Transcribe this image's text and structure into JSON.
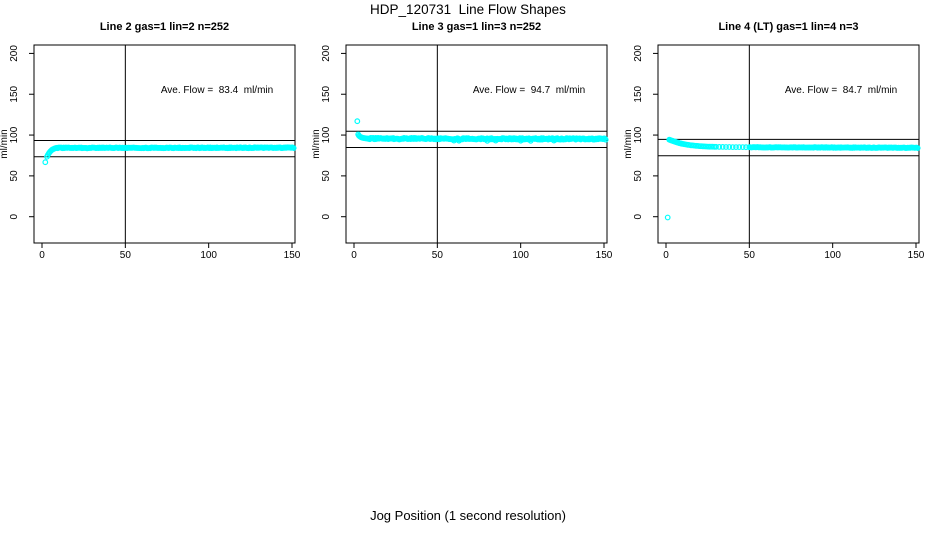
{
  "chart_data": {
    "type": "scatter",
    "title": "HDP_120731  Line Flow Shapes",
    "xlabel": "Jog Position (1 second resolution)",
    "ylabel": "ml/min",
    "point_color": "#00FFFF",
    "line_color": "#000000",
    "marker": "open-circle",
    "axes": {
      "xlim": [
        -4.8,
        151.8
      ],
      "ylim": [
        -32.2,
        210.3
      ],
      "x_ticks": [
        0,
        50,
        100,
        150
      ],
      "y_ticks": [
        0,
        50,
        100,
        150,
        200
      ],
      "grid": false
    },
    "panels": [
      {
        "title": "Line 2 gas=1 lin=2 n=252",
        "annotation": "Ave. Flow =  83.4  ml/min",
        "ave_flow": 83.4,
        "hlines": [
          93.4,
          73.4
        ],
        "vline": 50,
        "series": {
          "transient": [
            [
              2,
              66.8
            ],
            [
              3,
              73.5
            ],
            [
              3.5,
              75.5
            ],
            [
              4,
              77.3
            ],
            [
              4.5,
              78.8
            ],
            [
              5,
              80.0
            ],
            [
              5.5,
              81.0
            ],
            [
              6,
              81.9
            ],
            [
              6.5,
              82.6
            ],
            [
              7,
              83.1
            ],
            [
              7.5,
              83.5
            ],
            [
              8,
              83.9
            ],
            [
              8.5,
              84.1
            ]
          ],
          "plateau": {
            "x_from": 9,
            "x_to": 151,
            "x_step": 0.5,
            "y_start": 84.3,
            "y_end": 84.5,
            "y_noise": 0.5
          }
        }
      },
      {
        "title": "Line 3 gas=1 lin=3 n=252",
        "annotation": "Ave. Flow =  94.7  ml/min",
        "ave_flow": 94.7,
        "hlines": [
          104.7,
          84.7
        ],
        "vline": 50,
        "series": {
          "transient": [
            [
              2,
              117.0
            ],
            [
              2.5,
              100.8
            ],
            [
              3,
              99.2
            ],
            [
              3.5,
              98.2
            ],
            [
              4,
              97.6
            ],
            [
              4.5,
              97.1
            ],
            [
              5,
              96.8
            ],
            [
              5.5,
              96.5
            ],
            [
              6,
              96.3
            ],
            [
              6.5,
              96.1
            ],
            [
              7,
              96.0
            ],
            [
              7.5,
              95.9
            ],
            [
              8,
              95.8
            ],
            [
              60,
              93.2
            ],
            [
              63,
              93.1
            ],
            [
              80,
              93.0
            ],
            [
              85,
              93.2
            ],
            [
              100,
              93.1
            ],
            [
              106,
              93.0
            ],
            [
              120,
              93.2
            ]
          ],
          "plateau": {
            "x_from": 8.5,
            "x_to": 151,
            "x_step": 0.5,
            "y_start": 95.7,
            "y_end": 95.2,
            "y_noise": 0.9
          }
        }
      },
      {
        "title": "Line 4 (LT) gas=1 lin=4 n=3",
        "annotation": "Ave. Flow =  84.7  ml/min",
        "ave_flow": 84.7,
        "hlines": [
          94.7,
          74.7
        ],
        "vline": 50,
        "series": {
          "transient": [
            [
              1,
              -1.0
            ],
            [
              2,
              94.3
            ],
            [
              2.5,
              94.0
            ],
            [
              3,
              93.6
            ],
            [
              3.5,
              93.2
            ],
            [
              4,
              92.9
            ],
            [
              4.5,
              92.5
            ],
            [
              5,
              92.2
            ],
            [
              5.5,
              91.8
            ],
            [
              6,
              91.5
            ],
            [
              6.5,
              91.1
            ],
            [
              7,
              90.8
            ],
            [
              7.5,
              90.5
            ],
            [
              8,
              90.2
            ],
            [
              8.5,
              89.9
            ],
            [
              9,
              89.7
            ],
            [
              9.5,
              89.4
            ],
            [
              10,
              89.2
            ],
            [
              11,
              88.8
            ],
            [
              12,
              88.4
            ],
            [
              13,
              88.1
            ],
            [
              14,
              87.8
            ],
            [
              15,
              87.5
            ],
            [
              16,
              87.3
            ],
            [
              17,
              87.1
            ],
            [
              18,
              86.9
            ],
            [
              19,
              86.7
            ],
            [
              20,
              86.5
            ],
            [
              21,
              86.4
            ],
            [
              22,
              86.2
            ],
            [
              23,
              86.1
            ],
            [
              24,
              86.0
            ],
            [
              25,
              85.9
            ],
            [
              26,
              85.8
            ],
            [
              27,
              85.7
            ],
            [
              28,
              85.7
            ],
            [
              29,
              85.6
            ],
            [
              30,
              85.6
            ],
            [
              32,
              85.5
            ],
            [
              34,
              85.5
            ],
            [
              36,
              85.4
            ],
            [
              38,
              85.4
            ],
            [
              40,
              85.3
            ],
            [
              42,
              85.3
            ],
            [
              44,
              85.2
            ],
            [
              46,
              85.2
            ],
            [
              48,
              85.1
            ],
            [
              50,
              85.1
            ]
          ],
          "plateau": {
            "x_from": 50.5,
            "x_to": 151,
            "x_step": 0.5,
            "y_start": 85.1,
            "y_end": 84.4,
            "y_noise": 0.35
          }
        }
      }
    ]
  }
}
